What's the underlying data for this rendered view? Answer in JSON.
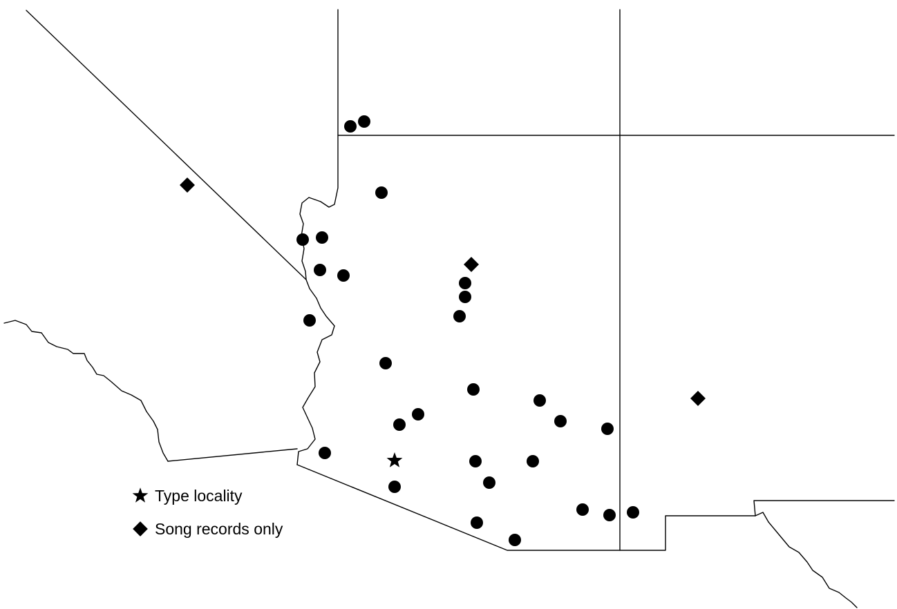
{
  "legend": {
    "items": [
      {
        "symbol": "star",
        "label": "Type locality"
      },
      {
        "symbol": "diamond",
        "label": "Song records only"
      }
    ]
  },
  "colors": {
    "marker": "#000000",
    "border": "#000000",
    "background": "#ffffff"
  }
}
